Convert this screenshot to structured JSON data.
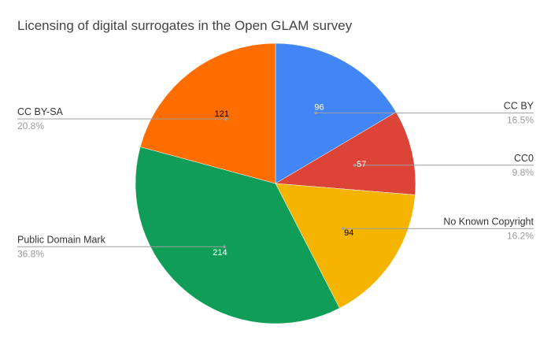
{
  "chart_data": {
    "type": "pie",
    "title": "Licensing of digital surrogates in the Open GLAM survey",
    "slices": [
      {
        "name": "CC BY",
        "value": 96,
        "percent_label": "16.5%",
        "color": "#4285f4",
        "label_color": "#ffffff"
      },
      {
        "name": "CC0",
        "value": 57,
        "percent_label": "9.8%",
        "color": "#db4437",
        "label_color": "#ffffff"
      },
      {
        "name": "No Known Copyright",
        "value": 94,
        "percent_label": "16.2%",
        "color": "#f4b400",
        "label_color": "#000000"
      },
      {
        "name": "Public Domain Mark",
        "value": 214,
        "percent_label": "36.8%",
        "color": "#0f9d58",
        "label_color": "#ffffff"
      },
      {
        "name": "CC BY-SA",
        "value": 121,
        "percent_label": "20.8%",
        "color": "#ff6d00",
        "label_color": "#000000"
      }
    ],
    "start_angle": "12 o'clock",
    "direction": "clockwise",
    "legend": "callouts"
  }
}
